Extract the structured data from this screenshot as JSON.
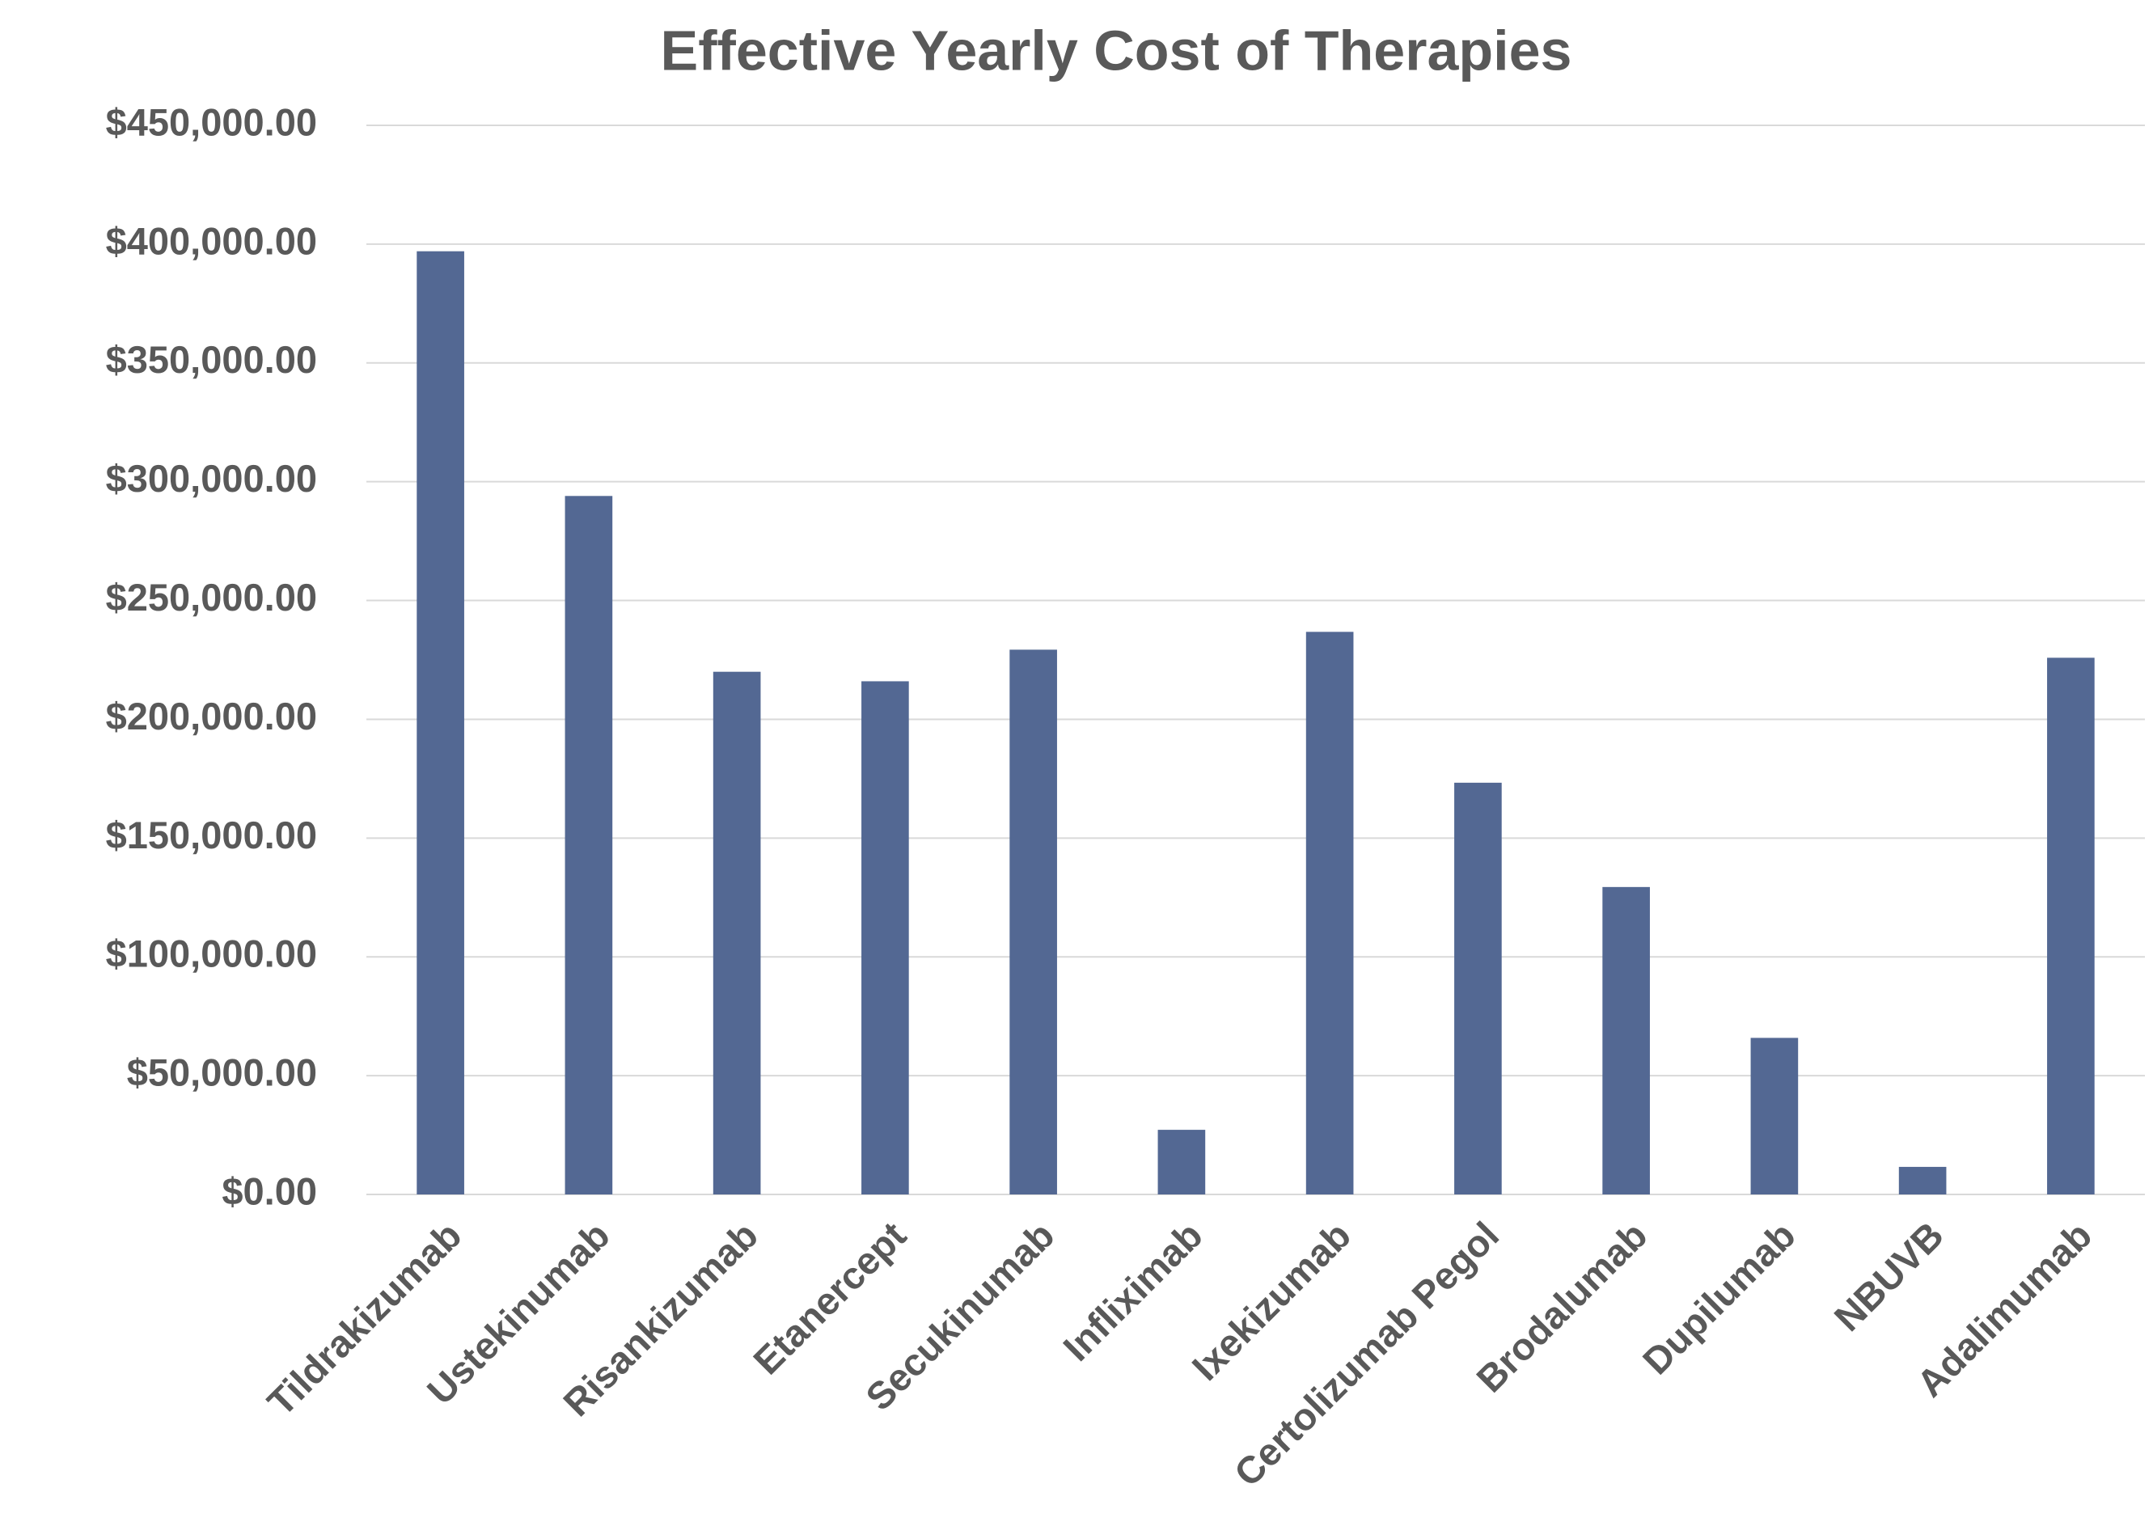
{
  "chart_data": {
    "type": "bar",
    "title": "Effective Yearly Cost of Therapies",
    "categories": [
      "Tildrakizumab",
      "Ustekinumab",
      "Risankizumab",
      "Etanercept",
      "Secukinumab",
      "Infliximab",
      "Ixekizumab",
      "Certolizumab Pegol",
      "Brodalumab",
      "Dupilumab",
      "NBUVB",
      "Adalimumab"
    ],
    "values": [
      397000,
      294000,
      220000,
      216000,
      229300,
      27200,
      236800,
      173300,
      129400,
      65900,
      11600,
      225900
    ],
    "color": "#536893",
    "ylim": [
      0,
      450000
    ],
    "yticks": [
      {
        "value": 0,
        "label": "$0.00"
      },
      {
        "value": 50000,
        "label": "$50,000.00"
      },
      {
        "value": 100000,
        "label": "$100,000.00"
      },
      {
        "value": 150000,
        "label": "$150,000.00"
      },
      {
        "value": 200000,
        "label": "$200,000.00"
      },
      {
        "value": 250000,
        "label": "$250,000.00"
      },
      {
        "value": 300000,
        "label": "$300,000.00"
      },
      {
        "value": 350000,
        "label": "$350,000.00"
      },
      {
        "value": 400000,
        "label": "$400,000.00"
      },
      {
        "value": 450000,
        "label": "$450,000.00"
      }
    ],
    "grid": true
  }
}
